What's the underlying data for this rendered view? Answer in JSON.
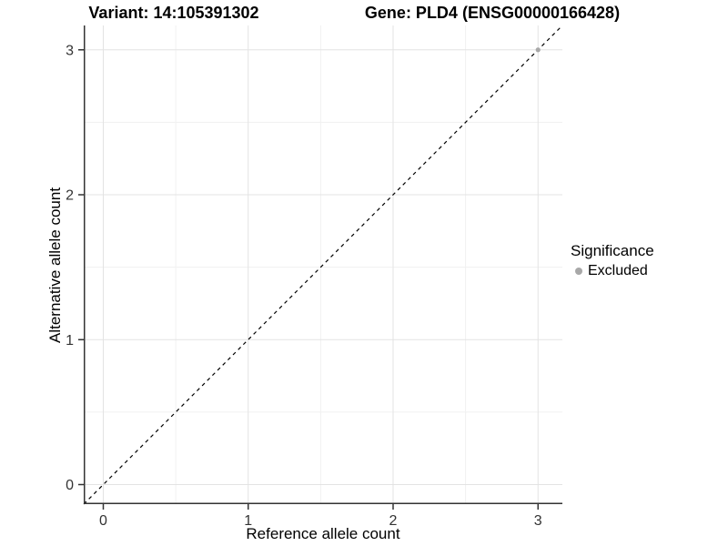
{
  "chart_data": {
    "type": "scatter",
    "title_left": "Variant: 14:105391302",
    "title_right": "Gene: PLD4 (ENSG00000166428)",
    "xlabel": "Reference allele count",
    "ylabel": "Alternative allele count",
    "xlim": [
      -0.135,
      3.168
    ],
    "ylim": [
      -0.135,
      3.168
    ],
    "xticks": [
      0,
      1,
      2,
      3
    ],
    "yticks": [
      0,
      1,
      2,
      3
    ],
    "xticks_minor": [
      0.5,
      1.5,
      2.5
    ],
    "yticks_minor": [
      0.5,
      1.5,
      2.5
    ],
    "grid": true,
    "grid_major_color": "#e3e3e3",
    "grid_minor_color": "#f1f1f1",
    "axis_line_color": "#333333",
    "tick_label_color": "#333333",
    "identity_line": {
      "style": "dashed",
      "color": "#000000",
      "equation": "y = x"
    },
    "series": [
      {
        "name": "Excluded",
        "color": "#a8a8a8",
        "points": [
          [
            3,
            3
          ]
        ]
      }
    ],
    "legend": {
      "title": "Significance",
      "position": "right",
      "entries": [
        {
          "label": "Excluded",
          "color": "#a8a8a8"
        }
      ]
    }
  }
}
